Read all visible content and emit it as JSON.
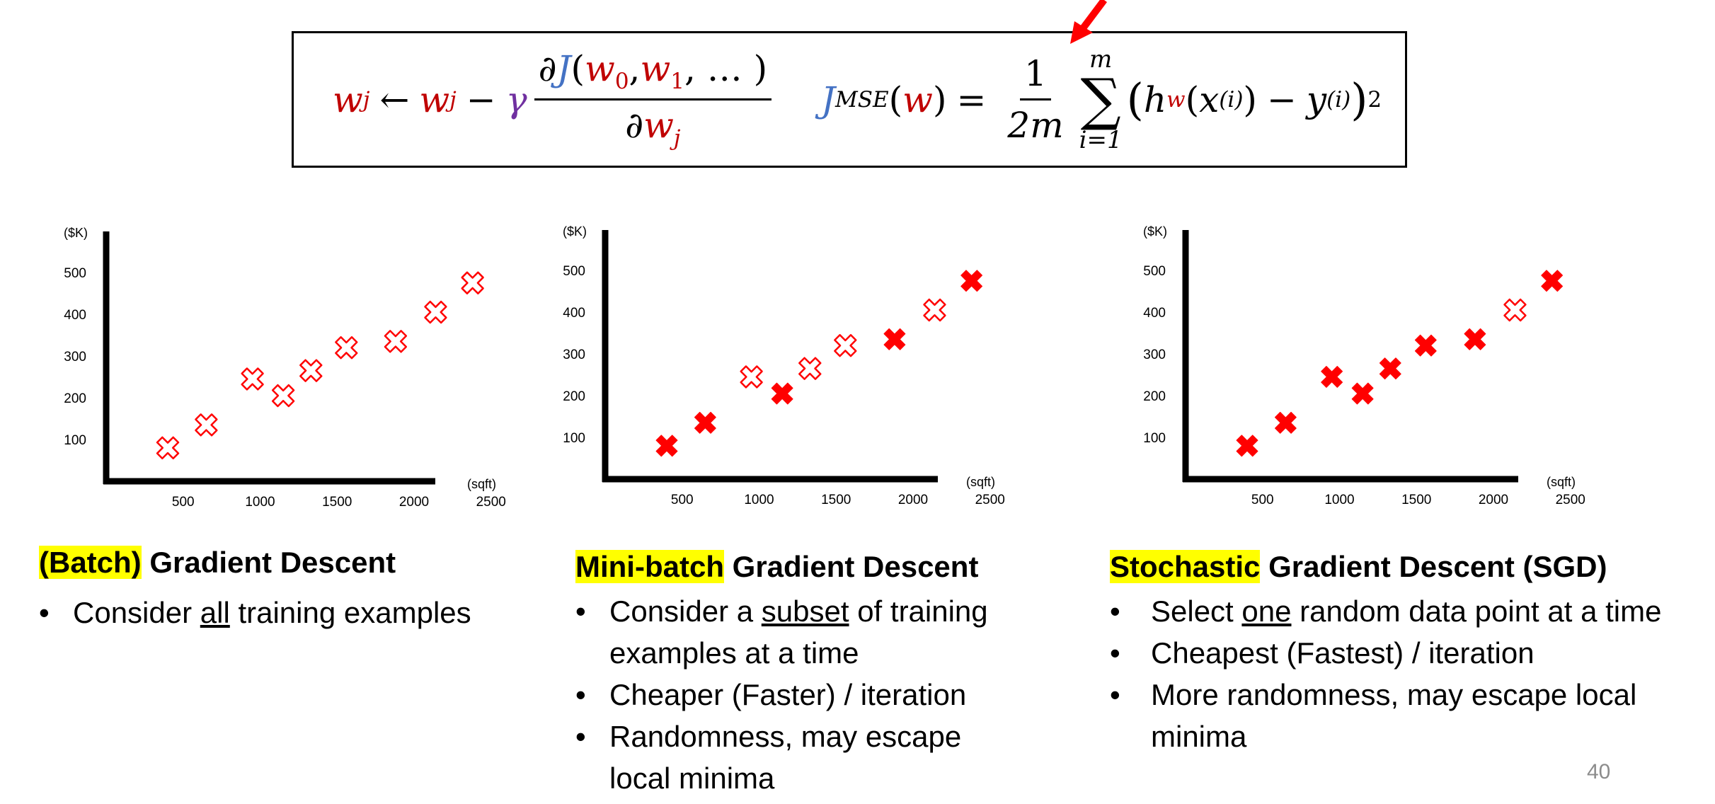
{
  "formulas": {
    "update_rule": {
      "w": "w",
      "j": "j",
      "arrow": "←",
      "minus": "−",
      "gamma": "γ",
      "partial": "∂",
      "J": "J",
      "w0": "w",
      "zero": "0",
      "w1": "w",
      "one": "1",
      "args_tail": ", … )",
      "lparen": "(",
      "comma": ","
    },
    "mse": {
      "J": "J",
      "sub": "MSE",
      "w": "w",
      "eq": "=",
      "frac_num": "1",
      "frac_den": "2m",
      "sum_top": "m",
      "sum_sym": "∑",
      "sum_bottom": "i=1",
      "h": "h",
      "x": "x",
      "y": "y",
      "sup_i": "(i)",
      "sq": "2"
    }
  },
  "charts_common": {
    "ylabel": "($K)",
    "xlabel": "(sqft)",
    "y_ticks": [
      "500",
      "400",
      "300",
      "200",
      "100"
    ],
    "x_ticks": [
      "500",
      "1000",
      "1500",
      "2000",
      "2500"
    ]
  },
  "chart_data": [
    {
      "type": "scatter",
      "title": "",
      "xlabel": "(sqft)",
      "ylabel": "($K)",
      "xlim": [
        0,
        2650
      ],
      "ylim": [
        0,
        560
      ],
      "grid": false,
      "x": [
        400,
        650,
        950,
        1150,
        1330,
        1560,
        1880,
        2140,
        2380
      ],
      "y": [
        80,
        135,
        245,
        205,
        265,
        320,
        335,
        405,
        475
      ],
      "filled": [
        false,
        false,
        false,
        false,
        false,
        false,
        false,
        false,
        false
      ],
      "marker_color": "#ff0000"
    },
    {
      "type": "scatter",
      "title": "",
      "xlabel": "(sqft)",
      "ylabel": "($K)",
      "xlim": [
        0,
        2650
      ],
      "ylim": [
        0,
        560
      ],
      "grid": false,
      "x": [
        400,
        650,
        950,
        1150,
        1330,
        1560,
        1880,
        2140,
        2380
      ],
      "y": [
        80,
        135,
        245,
        205,
        265,
        320,
        335,
        405,
        475
      ],
      "filled": [
        true,
        true,
        false,
        true,
        false,
        false,
        true,
        false,
        true
      ],
      "marker_color": "#ff0000"
    },
    {
      "type": "scatter",
      "title": "",
      "xlabel": "(sqft)",
      "ylabel": "($K)",
      "xlim": [
        0,
        2650
      ],
      "ylim": [
        0,
        560
      ],
      "grid": false,
      "x": [
        400,
        650,
        950,
        1150,
        1330,
        1560,
        1880,
        2140,
        2380
      ],
      "y": [
        80,
        135,
        245,
        205,
        265,
        320,
        335,
        405,
        475
      ],
      "filled": [
        true,
        true,
        true,
        true,
        true,
        true,
        true,
        false,
        true
      ],
      "marker_color": "#ff0000"
    }
  ],
  "sections": {
    "batch": {
      "highlight": "(Batch)",
      "rest": " Gradient Descent",
      "bullets": [
        {
          "a": "Consider ",
          "u": "all",
          "b": " training examples"
        }
      ]
    },
    "minibatch": {
      "highlight": "Mini-batch",
      "rest": " Gradient Descent",
      "bullets": [
        {
          "a": "Consider a ",
          "u": "subset",
          "b": " of training"
        },
        {
          "cont": "examples at a time"
        },
        {
          "a": "Cheaper (Faster) / iteration"
        },
        {
          "a": "Randomness, may escape"
        },
        {
          "cont": "local minima"
        }
      ]
    },
    "sgd": {
      "highlight": "Stochastic",
      "rest": " Gradient Descent (SGD)",
      "bullets": [
        {
          "a": "Select ",
          "u": "one",
          "b": " random data point at a time"
        },
        {
          "a": "Cheapest (Fastest) / iteration"
        },
        {
          "a": "More randomness, may escape local"
        },
        {
          "cont": "minima"
        }
      ]
    },
    "bullet_char": "•"
  },
  "page_number": "40"
}
